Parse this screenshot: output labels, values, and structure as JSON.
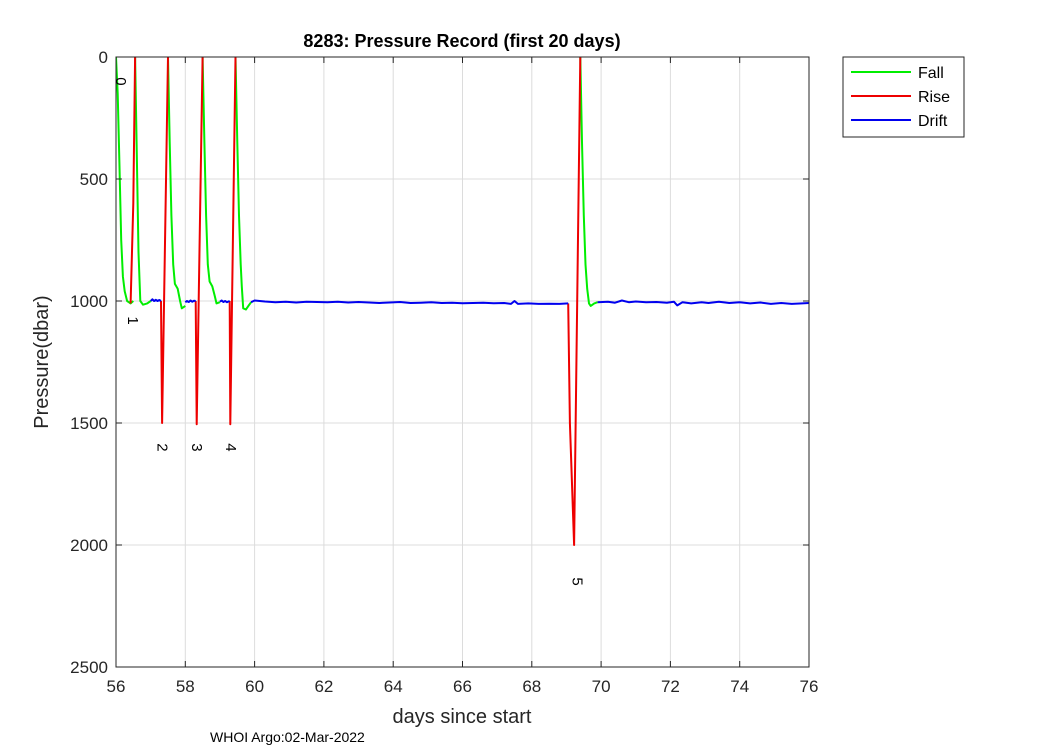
{
  "chart_data": {
    "type": "line",
    "title": "8283: Pressure Record (first 20 days)",
    "xlabel": "days since start",
    "ylabel": "Pressure(dbar)",
    "xlim": [
      56,
      76
    ],
    "ylim": [
      0,
      2500
    ],
    "y_reversed": true,
    "xticks": [
      56,
      58,
      60,
      62,
      64,
      66,
      68,
      70,
      72,
      74,
      76
    ],
    "yticks": [
      0,
      500,
      1000,
      1500,
      2000,
      2500
    ],
    "grid": true,
    "legend_position": "outside-top-right",
    "footer": "WHOI Argo:02-Mar-2022",
    "series": [
      {
        "name": "Fall",
        "color": "#00ee00",
        "segments": [
          [
            [
              56.0,
              0
            ],
            [
              56.05,
              150
            ],
            [
              56.1,
              450
            ],
            [
              56.15,
              750
            ],
            [
              56.2,
              900
            ],
            [
              56.25,
              960
            ],
            [
              56.32,
              1000
            ],
            [
              56.42,
              1010
            ],
            [
              56.5,
              1000
            ]
          ],
          [
            [
              56.55,
              0
            ],
            [
              56.6,
              400
            ],
            [
              56.65,
              800
            ],
            [
              56.7,
              1000
            ],
            [
              56.78,
              1015
            ],
            [
              56.9,
              1010
            ],
            [
              57.0,
              1000
            ]
          ],
          [
            [
              57.5,
              0
            ],
            [
              57.55,
              350
            ],
            [
              57.6,
              650
            ],
            [
              57.65,
              850
            ],
            [
              57.7,
              930
            ],
            [
              57.78,
              950
            ],
            [
              57.85,
              1000
            ],
            [
              57.9,
              1030
            ],
            [
              58.0,
              1020
            ]
          ],
          [
            [
              58.5,
              0
            ],
            [
              58.55,
              350
            ],
            [
              58.6,
              650
            ],
            [
              58.65,
              850
            ],
            [
              58.7,
              920
            ],
            [
              58.78,
              940
            ],
            [
              58.85,
              980
            ],
            [
              58.9,
              1010
            ],
            [
              59.0,
              1005
            ]
          ],
          [
            [
              59.45,
              0
            ],
            [
              59.5,
              350
            ],
            [
              59.55,
              650
            ],
            [
              59.6,
              850
            ],
            [
              59.63,
              940
            ],
            [
              59.67,
              1030
            ],
            [
              59.75,
              1035
            ],
            [
              59.82,
              1020
            ],
            [
              59.9,
              1005
            ]
          ],
          [
            [
              69.4,
              0
            ],
            [
              69.45,
              350
            ],
            [
              69.5,
              650
            ],
            [
              69.55,
              850
            ],
            [
              69.6,
              950
            ],
            [
              69.65,
              1010
            ],
            [
              69.7,
              1020
            ],
            [
              69.8,
              1010
            ],
            [
              69.9,
              1005
            ]
          ]
        ]
      },
      {
        "name": "Rise",
        "color": "#ee0000",
        "segments": [
          [
            [
              56.42,
              1010
            ],
            [
              56.5,
              600
            ],
            [
              56.55,
              0
            ]
          ],
          [
            [
              57.3,
              1000
            ],
            [
              57.33,
              1500
            ],
            [
              57.5,
              0
            ]
          ],
          [
            [
              58.3,
              1000
            ],
            [
              58.33,
              1505
            ],
            [
              58.5,
              0
            ]
          ],
          [
            [
              59.28,
              1000
            ],
            [
              59.3,
              1505
            ],
            [
              59.45,
              0
            ]
          ],
          [
            [
              69.05,
              1010
            ],
            [
              69.1,
              1500
            ],
            [
              69.22,
              2000
            ],
            [
              69.4,
              0
            ]
          ]
        ]
      },
      {
        "name": "Drift",
        "color": "#0000ee",
        "segments": [
          [
            [
              57.0,
              1000
            ],
            [
              57.05,
              993
            ],
            [
              57.1,
              1000
            ],
            [
              57.15,
              995
            ],
            [
              57.2,
              1000
            ],
            [
              57.25,
              996
            ],
            [
              57.3,
              1000
            ]
          ],
          [
            [
              58.0,
              1005
            ],
            [
              58.05,
              1000
            ],
            [
              58.1,
              1004
            ],
            [
              58.15,
              998
            ],
            [
              58.2,
              1003
            ],
            [
              58.25,
              999
            ],
            [
              58.3,
              1000
            ]
          ],
          [
            [
              59.0,
              1003
            ],
            [
              59.05,
              998
            ],
            [
              59.1,
              1004
            ],
            [
              59.15,
              1000
            ],
            [
              59.2,
              1005
            ],
            [
              59.28,
              1000
            ]
          ],
          [
            [
              59.9,
              1005
            ],
            [
              60.0,
              998
            ],
            [
              60.3,
              1002
            ],
            [
              60.6,
              1005
            ],
            [
              60.9,
              1003
            ],
            [
              61.2,
              1006
            ],
            [
              61.5,
              1003
            ],
            [
              61.8,
              1004
            ],
            [
              62.1,
              1005
            ],
            [
              62.4,
              1003
            ],
            [
              62.7,
              1006
            ],
            [
              63.0,
              1004
            ],
            [
              63.3,
              1006
            ],
            [
              63.6,
              1008
            ],
            [
              63.9,
              1006
            ],
            [
              64.2,
              1004
            ],
            [
              64.5,
              1008
            ],
            [
              64.8,
              1007
            ],
            [
              65.1,
              1005
            ],
            [
              65.4,
              1008
            ],
            [
              65.7,
              1007
            ],
            [
              66.0,
              1009
            ],
            [
              66.3,
              1008
            ],
            [
              66.6,
              1007
            ],
            [
              66.9,
              1009
            ],
            [
              67.2,
              1008
            ],
            [
              67.4,
              1012
            ],
            [
              67.5,
              1000
            ],
            [
              67.6,
              1012
            ],
            [
              67.9,
              1010
            ],
            [
              68.2,
              1012
            ],
            [
              68.5,
              1011
            ],
            [
              68.8,
              1012
            ],
            [
              69.05,
              1010
            ]
          ],
          [
            [
              69.9,
              1005
            ],
            [
              70.2,
              1003
            ],
            [
              70.4,
              1007
            ],
            [
              70.6,
              998
            ],
            [
              70.8,
              1005
            ],
            [
              71.0,
              1002
            ],
            [
              71.3,
              1005
            ],
            [
              71.6,
              1004
            ],
            [
              71.9,
              1007
            ],
            [
              72.1,
              1003
            ],
            [
              72.2,
              1018
            ],
            [
              72.35,
              1005
            ],
            [
              72.6,
              1010
            ],
            [
              72.9,
              1005
            ],
            [
              73.1,
              1008
            ],
            [
              73.4,
              1003
            ],
            [
              73.7,
              1008
            ],
            [
              74.0,
              1005
            ],
            [
              74.3,
              1010
            ],
            [
              74.6,
              1006
            ],
            [
              74.9,
              1012
            ],
            [
              75.2,
              1008
            ],
            [
              75.5,
              1012
            ],
            [
              75.8,
              1010
            ],
            [
              76.0,
              1008
            ]
          ]
        ]
      }
    ],
    "profile_labels": [
      {
        "text": "0",
        "x": 56.0,
        "y": 100
      },
      {
        "text": "1",
        "x": 56.35,
        "y": 1080
      },
      {
        "text": "2",
        "x": 57.2,
        "y": 1600
      },
      {
        "text": "3",
        "x": 58.2,
        "y": 1600
      },
      {
        "text": "4",
        "x": 59.18,
        "y": 1600
      },
      {
        "text": "5",
        "x": 69.17,
        "y": 2150
      }
    ]
  }
}
